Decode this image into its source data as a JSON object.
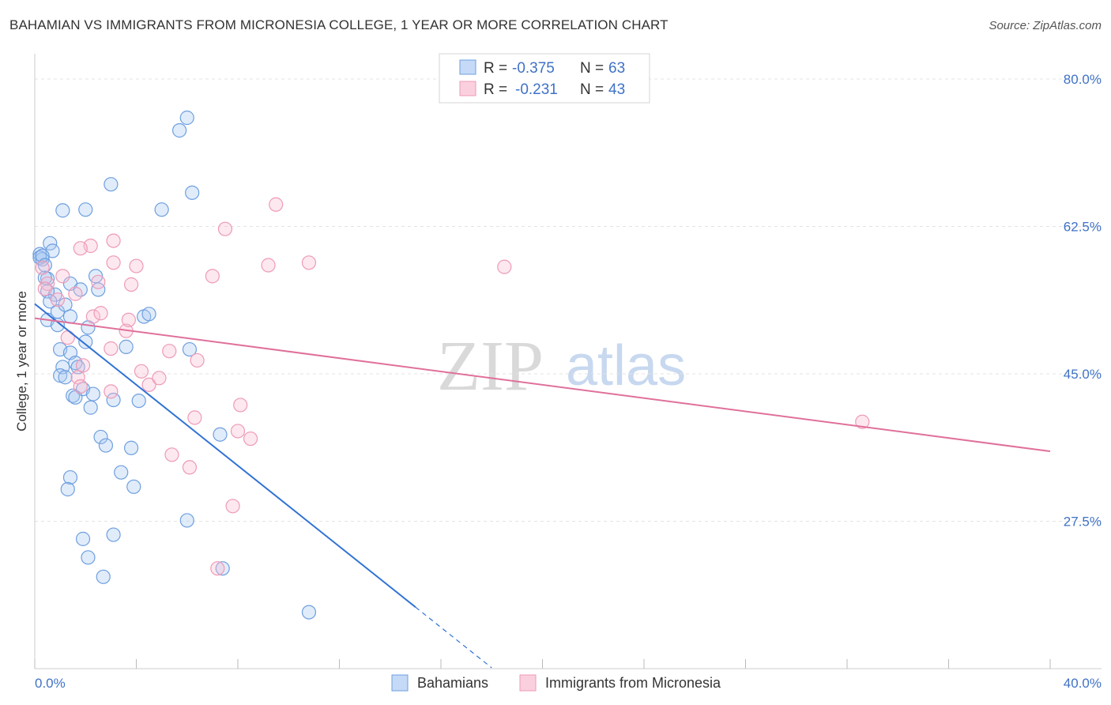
{
  "title": "BAHAMIAN VS IMMIGRANTS FROM MICRONESIA COLLEGE, 1 YEAR OR MORE CORRELATION CHART",
  "source": "Source: ZipAtlas.com",
  "watermark": {
    "zip": "ZIP",
    "atlas": "atlas"
  },
  "legend": {
    "r_label": "R =",
    "n_label": "N =",
    "entries": [
      {
        "r": "-0.375",
        "n": "63"
      },
      {
        "r": "-0.231",
        "n": "43"
      }
    ]
  },
  "chart_data": {
    "type": "scatter",
    "title": "BAHAMIAN VS IMMIGRANTS FROM MICRONESIA COLLEGE, 1 YEAR OR MORE CORRELATION CHART",
    "xlabel": "",
    "ylabel": "College, 1 year or more",
    "xlim": [
      0,
      40
    ],
    "ylim": [
      10,
      83
    ],
    "x_tick_labels": [
      "0.0%",
      "40.0%"
    ],
    "y_ticks": [
      27.5,
      45.0,
      62.5,
      80.0
    ],
    "y_tick_labels": [
      "27.5%",
      "45.0%",
      "62.5%",
      "80.0%"
    ],
    "colors": {
      "Bahamians": "#4a8be0",
      "Immigrants from Micronesia": "#e88aa8",
      "line_blue": "#2f72d4",
      "line_pink": "#e0709b",
      "tick": "#3f72c6"
    },
    "series": [
      {
        "name": "Bahamians",
        "trend": {
          "x0": 0.0,
          "y0": 53.3,
          "x1": 15.0,
          "y1": 17.3,
          "dash_x1": 18.0
        },
        "points": [
          [
            0.2,
            59.2
          ],
          [
            0.3,
            58.6
          ],
          [
            0.5,
            56.3
          ],
          [
            0.6,
            60.5
          ],
          [
            0.7,
            59.6
          ],
          [
            0.4,
            56.4
          ],
          [
            0.2,
            58.8
          ],
          [
            0.8,
            54.4
          ],
          [
            0.9,
            52.4
          ],
          [
            0.5,
            54.8
          ],
          [
            0.6,
            53.6
          ],
          [
            1.2,
            53.2
          ],
          [
            1.4,
            55.7
          ],
          [
            1.8,
            55.0
          ],
          [
            2.4,
            56.6
          ],
          [
            2.5,
            55.0
          ],
          [
            1.4,
            51.8
          ],
          [
            0.5,
            51.4
          ],
          [
            0.9,
            50.8
          ],
          [
            2.1,
            50.5
          ],
          [
            2.0,
            48.8
          ],
          [
            1.0,
            47.9
          ],
          [
            1.4,
            47.5
          ],
          [
            1.6,
            46.3
          ],
          [
            1.7,
            45.8
          ],
          [
            1.1,
            45.8
          ],
          [
            1.0,
            44.8
          ],
          [
            1.2,
            44.6
          ],
          [
            1.9,
            43.2
          ],
          [
            2.3,
            42.6
          ],
          [
            1.5,
            42.4
          ],
          [
            1.6,
            42.2
          ],
          [
            3.1,
            41.9
          ],
          [
            4.1,
            41.8
          ],
          [
            2.2,
            41.0
          ],
          [
            4.3,
            51.8
          ],
          [
            4.5,
            52.1
          ],
          [
            3.6,
            48.2
          ],
          [
            6.1,
            47.9
          ],
          [
            5.7,
            73.9
          ],
          [
            6.0,
            75.4
          ],
          [
            3.0,
            67.5
          ],
          [
            2.0,
            64.5
          ],
          [
            1.1,
            64.4
          ],
          [
            5.0,
            64.5
          ],
          [
            6.2,
            66.5
          ],
          [
            2.6,
            37.5
          ],
          [
            2.8,
            36.5
          ],
          [
            3.8,
            36.2
          ],
          [
            3.4,
            33.3
          ],
          [
            3.9,
            31.6
          ],
          [
            1.4,
            32.7
          ],
          [
            1.3,
            31.3
          ],
          [
            6.0,
            27.6
          ],
          [
            1.9,
            25.4
          ],
          [
            3.1,
            25.9
          ],
          [
            2.1,
            23.2
          ],
          [
            2.7,
            20.9
          ],
          [
            7.4,
            21.9
          ],
          [
            7.3,
            37.8
          ],
          [
            10.8,
            16.7
          ],
          [
            0.3,
            59.0
          ],
          [
            0.4,
            57.9
          ]
        ]
      },
      {
        "name": "Immigrants from Micronesia",
        "trend": {
          "x0": 0.0,
          "y0": 51.6,
          "x1": 40.0,
          "y1": 35.8
        },
        "points": [
          [
            0.3,
            57.6
          ],
          [
            0.5,
            55.7
          ],
          [
            0.4,
            55.1
          ],
          [
            1.1,
            56.6
          ],
          [
            0.9,
            53.8
          ],
          [
            1.6,
            54.5
          ],
          [
            2.3,
            51.8
          ],
          [
            2.6,
            52.2
          ],
          [
            3.0,
            48.0
          ],
          [
            3.6,
            50.1
          ],
          [
            3.7,
            51.4
          ],
          [
            3.8,
            55.6
          ],
          [
            2.5,
            55.9
          ],
          [
            1.3,
            49.3
          ],
          [
            1.7,
            44.6
          ],
          [
            1.8,
            43.5
          ],
          [
            2.2,
            60.2
          ],
          [
            1.8,
            59.9
          ],
          [
            3.1,
            58.2
          ],
          [
            3.1,
            60.8
          ],
          [
            4.0,
            57.8
          ],
          [
            4.2,
            45.3
          ],
          [
            4.5,
            43.7
          ],
          [
            4.9,
            44.5
          ],
          [
            3.0,
            42.9
          ],
          [
            5.3,
            47.7
          ],
          [
            6.4,
            46.6
          ],
          [
            6.3,
            39.8
          ],
          [
            7.0,
            56.6
          ],
          [
            7.5,
            62.2
          ],
          [
            9.2,
            57.9
          ],
          [
            10.8,
            58.2
          ],
          [
            9.5,
            65.1
          ],
          [
            8.1,
            41.3
          ],
          [
            8.0,
            38.2
          ],
          [
            8.5,
            37.3
          ],
          [
            5.4,
            35.4
          ],
          [
            6.1,
            33.9
          ],
          [
            7.8,
            29.3
          ],
          [
            7.2,
            21.9
          ],
          [
            18.5,
            57.7
          ],
          [
            32.6,
            39.3
          ],
          [
            1.9,
            46.0
          ]
        ]
      }
    ]
  },
  "bottom_legend": [
    "Bahamians",
    "Immigrants from Micronesia"
  ]
}
